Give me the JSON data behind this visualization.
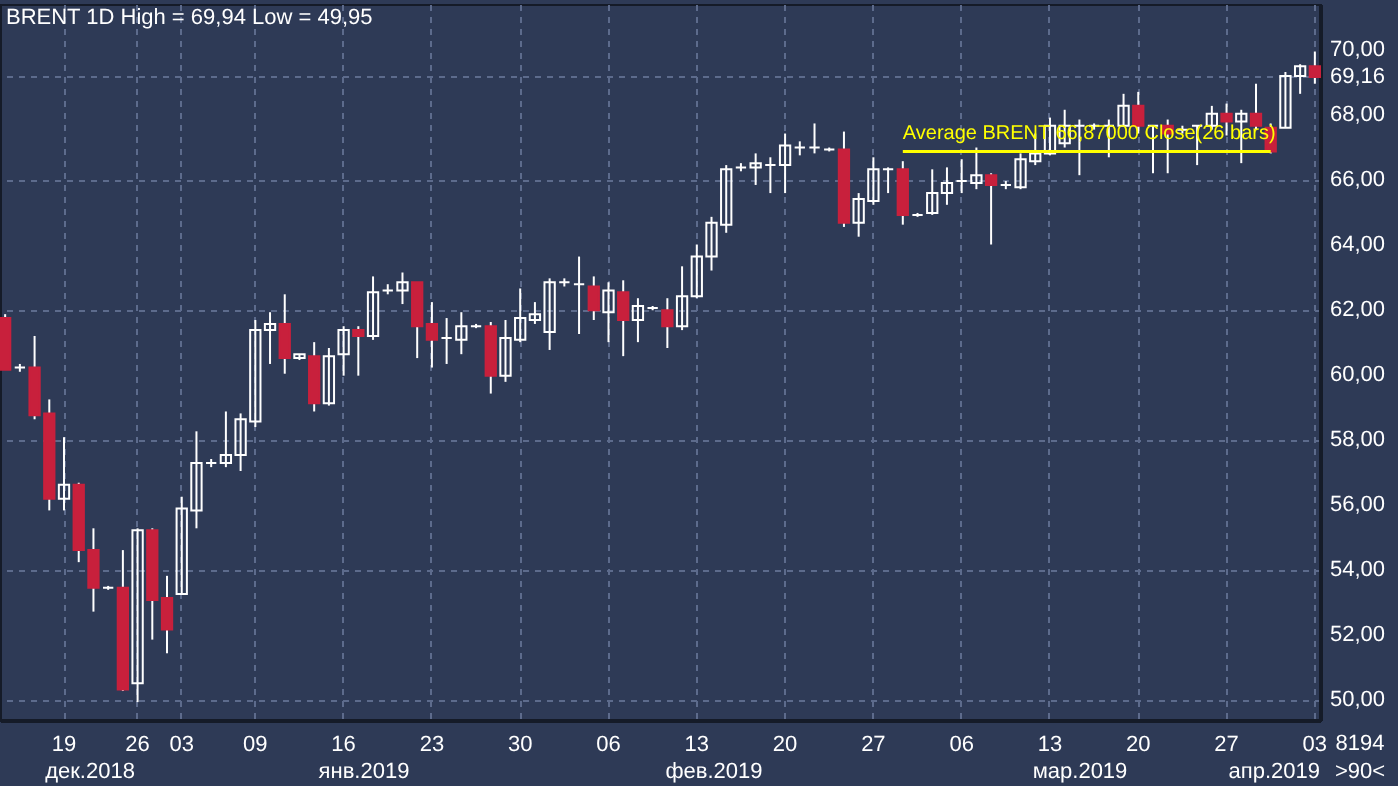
{
  "chart_data": {
    "type": "candlestick",
    "title": "BRENT 1D High = 69,94 Low = 49,95",
    "categories": [
      null,
      null,
      null,
      null,
      "19",
      null,
      null,
      null,
      null,
      "26",
      null,
      null,
      "03",
      null,
      null,
      null,
      null,
      "09",
      null,
      null,
      null,
      null,
      null,
      "16",
      null,
      null,
      null,
      null,
      null,
      "23",
      null,
      null,
      null,
      null,
      null,
      "30",
      null,
      null,
      null,
      null,
      null,
      "06",
      null,
      null,
      null,
      null,
      null,
      "13",
      null,
      null,
      null,
      null,
      null,
      "20",
      null,
      null,
      null,
      null,
      null,
      "27",
      null,
      null,
      null,
      null,
      null,
      "06",
      null,
      null,
      null,
      null,
      null,
      "13",
      null,
      null,
      null,
      null,
      null,
      "20",
      null,
      null,
      null,
      null,
      null,
      "27",
      null,
      null,
      null,
      null,
      null,
      "03"
    ],
    "ohlc": [
      [
        61.75,
        61.87,
        60.16,
        60.16
      ],
      [
        60.23,
        60.34,
        60.1,
        60.23
      ],
      [
        60.23,
        61.2,
        58.64,
        58.76
      ],
      [
        58.82,
        59.25,
        55.84,
        56.2
      ],
      [
        56.2,
        58.09,
        55.84,
        56.63
      ],
      [
        56.63,
        56.69,
        54.25,
        54.62
      ],
      [
        54.62,
        55.29,
        52.73,
        53.46
      ],
      [
        53.46,
        53.52,
        53.4,
        53.46
      ],
      [
        53.46,
        54.62,
        50.29,
        50.34
      ],
      [
        50.53,
        55.29,
        49.95,
        55.23
      ],
      [
        55.23,
        55.29,
        51.87,
        53.09
      ],
      [
        53.15,
        53.83,
        51.45,
        52.18
      ],
      [
        53.27,
        56.26,
        53.27,
        55.9
      ],
      [
        55.84,
        58.27,
        55.29,
        57.3
      ],
      [
        57.3,
        57.42,
        57.17,
        57.3
      ],
      [
        57.3,
        58.88,
        57.17,
        57.54
      ],
      [
        57.54,
        58.82,
        57.05,
        58.64
      ],
      [
        58.57,
        61.69,
        58.4,
        61.38
      ],
      [
        61.38,
        61.93,
        60.34,
        61.57
      ],
      [
        61.57,
        62.48,
        60.04,
        60.52
      ],
      [
        60.52,
        60.64,
        60.46,
        60.64
      ],
      [
        60.58,
        61.01,
        58.88,
        59.13
      ],
      [
        59.13,
        60.83,
        59.06,
        60.58
      ],
      [
        60.64,
        61.5,
        59.98,
        61.38
      ],
      [
        61.38,
        61.5,
        59.98,
        61.2
      ],
      [
        61.2,
        63.03,
        61.08,
        62.54
      ],
      [
        62.6,
        62.79,
        62.48,
        62.6
      ],
      [
        62.6,
        63.15,
        62.18,
        62.85
      ],
      [
        62.85,
        62.85,
        60.52,
        61.5
      ],
      [
        61.57,
        62.24,
        60.23,
        61.08
      ],
      [
        61.14,
        61.75,
        60.34,
        61.14
      ],
      [
        61.08,
        61.93,
        60.64,
        61.5
      ],
      [
        61.5,
        61.57,
        61.44,
        61.5
      ],
      [
        61.5,
        61.63,
        59.43,
        59.98
      ],
      [
        59.98,
        61.69,
        59.79,
        61.14
      ],
      [
        61.08,
        62.66,
        61.01,
        61.75
      ],
      [
        61.69,
        62.24,
        61.57,
        61.87
      ],
      [
        61.32,
        62.97,
        60.77,
        62.85
      ],
      [
        62.85,
        62.97,
        62.72,
        62.85
      ],
      [
        62.79,
        63.64,
        61.26,
        62.79
      ],
      [
        62.72,
        63.03,
        61.69,
        61.99
      ],
      [
        61.93,
        62.85,
        61.01,
        62.6
      ],
      [
        62.54,
        62.91,
        60.58,
        61.69
      ],
      [
        61.69,
        62.36,
        61.01,
        62.12
      ],
      [
        62.06,
        62.12,
        61.99,
        62.06
      ],
      [
        61.99,
        62.36,
        60.83,
        61.5
      ],
      [
        61.5,
        63.34,
        61.38,
        62.42
      ],
      [
        62.42,
        64.01,
        62.36,
        63.64
      ],
      [
        63.64,
        64.86,
        63.21,
        64.68
      ],
      [
        64.62,
        66.45,
        64.37,
        66.32
      ],
      [
        66.38,
        66.51,
        66.26,
        66.38
      ],
      [
        66.38,
        66.81,
        65.84,
        66.51
      ],
      [
        66.45,
        66.69,
        65.59,
        66.45
      ],
      [
        66.45,
        67.42,
        65.59,
        67.05
      ],
      [
        66.99,
        67.18,
        66.75,
        66.99
      ],
      [
        66.99,
        67.73,
        66.81,
        66.99
      ],
      [
        66.93,
        66.99,
        66.87,
        66.93
      ],
      [
        66.93,
        67.48,
        64.55,
        64.68
      ],
      [
        64.68,
        65.59,
        64.25,
        65.41
      ],
      [
        65.35,
        66.69,
        65.23,
        66.32
      ],
      [
        66.32,
        66.38,
        65.59,
        66.32
      ],
      [
        66.32,
        66.57,
        64.62,
        64.92
      ],
      [
        64.92,
        64.98,
        64.86,
        64.92
      ],
      [
        64.98,
        66.32,
        64.92,
        65.59
      ],
      [
        65.59,
        66.38,
        65.23,
        65.9
      ],
      [
        65.96,
        66.63,
        65.59,
        65.96
      ],
      [
        65.9,
        66.99,
        65.71,
        66.14
      ],
      [
        66.14,
        66.2,
        64.01,
        65.84
      ],
      [
        65.84,
        65.96,
        65.71,
        65.84
      ],
      [
        65.77,
        66.81,
        65.71,
        66.63
      ],
      [
        66.57,
        67.42,
        66.45,
        66.81
      ],
      [
        66.81,
        67.91,
        66.75,
        67.66
      ],
      [
        67.12,
        68.15,
        66.99,
        67.66
      ],
      [
        67.66,
        67.85,
        66.14,
        67.66
      ],
      [
        67.66,
        67.73,
        67.54,
        67.66
      ],
      [
        67.66,
        67.85,
        66.69,
        67.66
      ],
      [
        67.66,
        68.64,
        67.66,
        68.27
      ],
      [
        68.27,
        68.7,
        67.42,
        67.66
      ],
      [
        67.66,
        67.66,
        66.2,
        67.66
      ],
      [
        67.66,
        67.85,
        66.2,
        67.42
      ],
      [
        67.54,
        67.66,
        67.42,
        67.54
      ],
      [
        67.66,
        67.66,
        66.45,
        67.66
      ],
      [
        67.66,
        68.27,
        67.54,
        68.03
      ],
      [
        68.03,
        68.34,
        67.36,
        67.79
      ],
      [
        67.79,
        68.15,
        66.51,
        68.03
      ],
      [
        68.03,
        68.95,
        67.54,
        67.66
      ],
      [
        67.6,
        67.73,
        66.81,
        66.87
      ],
      [
        67.6,
        69.31,
        67.6,
        69.19
      ],
      [
        69.19,
        69.55,
        68.64,
        69.49
      ],
      [
        69.49,
        69.94,
        68.95,
        69.16
      ]
    ],
    "colors": [
      "#c8203c",
      "#ffffff",
      "#c8203c",
      "#c8203c",
      "#ffffff",
      "#c8203c",
      "#c8203c",
      "#ffffff",
      "#c8203c",
      "#ffffff",
      "#c8203c",
      "#c8203c",
      "#ffffff",
      "#ffffff",
      "#ffffff",
      "#ffffff",
      "#ffffff",
      "#ffffff",
      "#ffffff",
      "#c8203c",
      "#ffffff",
      "#c8203c",
      "#ffffff",
      "#ffffff",
      "#c8203c",
      "#ffffff",
      "#ffffff",
      "#ffffff",
      "#c8203c",
      "#c8203c",
      "#ffffff",
      "#ffffff",
      "#ffffff",
      "#c8203c",
      "#ffffff",
      "#ffffff",
      "#ffffff",
      "#ffffff",
      "#ffffff",
      "#ffffff",
      "#c8203c",
      "#ffffff",
      "#c8203c",
      "#ffffff",
      "#ffffff",
      "#c8203c",
      "#ffffff",
      "#ffffff",
      "#ffffff",
      "#ffffff",
      "#ffffff",
      "#ffffff",
      "#ffffff",
      "#ffffff",
      "#ffffff",
      "#ffffff",
      "#ffffff",
      "#c8203c",
      "#ffffff",
      "#ffffff",
      "#ffffff",
      "#c8203c",
      "#ffffff",
      "#ffffff",
      "#ffffff",
      "#ffffff",
      "#ffffff",
      "#c8203c",
      "#ffffff",
      "#ffffff",
      "#ffffff",
      "#ffffff",
      "#ffffff",
      "#ffffff",
      "#ffffff",
      "#ffffff",
      "#ffffff",
      "#c8203c",
      "#ffffff",
      "#c8203c",
      "#ffffff",
      "#ffffff",
      "#ffffff",
      "#c8203c",
      "#ffffff",
      "#c8203c",
      "#c8203c",
      "#ffffff",
      "#ffffff",
      "#c8203c"
    ],
    "series": [
      {
        "type": "line",
        "name": "Average BRENT 66,87000 Close(26 bars)",
        "color": "#ffff00",
        "values": [
          null,
          null,
          null,
          null,
          null,
          null,
          null,
          null,
          null,
          null,
          null,
          null,
          null,
          null,
          null,
          null,
          null,
          null,
          null,
          null,
          null,
          null,
          null,
          null,
          null,
          null,
          null,
          null,
          null,
          null,
          null,
          null,
          null,
          null,
          null,
          null,
          null,
          null,
          null,
          null,
          null,
          null,
          null,
          null,
          null,
          null,
          null,
          null,
          null,
          null,
          null,
          null,
          null,
          null,
          null,
          null,
          null,
          null,
          null,
          null,
          null,
          66.87,
          66.87,
          66.87,
          66.87,
          66.87,
          66.87,
          66.87,
          66.87,
          66.87,
          66.87,
          66.87,
          66.87,
          66.87,
          66.87,
          66.87,
          66.87,
          66.87,
          66.87,
          66.87,
          66.87,
          66.87,
          66.87,
          66.87,
          66.87,
          66.87,
          66.87,
          null,
          null,
          null
        ]
      }
    ],
    "ylim": [
      49.4,
      71.4
    ],
    "yticks": [
      {
        "value": 50,
        "label": "50,00"
      },
      {
        "value": 52,
        "label": "52,00"
      },
      {
        "value": 54,
        "label": "54,00"
      },
      {
        "value": 56,
        "label": "56,00"
      },
      {
        "value": 58,
        "label": "58,00"
      },
      {
        "value": 60,
        "label": "60,00"
      },
      {
        "value": 62,
        "label": "62,00"
      },
      {
        "value": 64,
        "label": "64,00"
      },
      {
        "value": 66,
        "label": "66,00"
      },
      {
        "value": 68,
        "label": "68,00"
      },
      {
        "value": 69.16,
        "label": "69,16"
      },
      {
        "value": 70,
        "label": "70,00"
      }
    ],
    "grid": true,
    "annotations": [
      "дек.2018",
      "янв.2019",
      "фев.2019",
      "мар.2019",
      "апр.2019",
      "8194",
      ">90<"
    ]
  }
}
